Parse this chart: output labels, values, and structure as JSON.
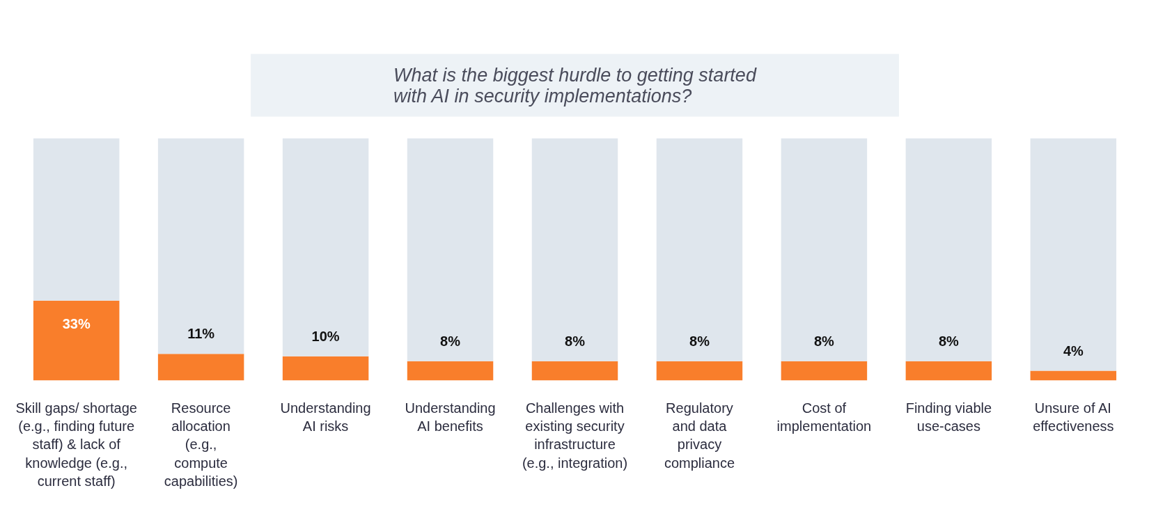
{
  "chart_data": {
    "type": "bar",
    "title": "What is the biggest hurdle to getting started\nwith AI in security implementations?",
    "categories": [
      "Skill gaps/ shortage\n(e.g., finding future\nstaff) & lack of\nknowledge (e.g.,\ncurrent staff)",
      "Resource\nallocation\n(e.g.,\ncompute\ncapabilities)",
      "Understanding\nAI risks",
      "Understanding\nAI benefits",
      "Challenges with\nexisting security\ninfrastructure\n(e.g., integration)",
      "Regulatory\nand data\nprivacy\ncompliance",
      "Cost of\nimplementation",
      "Finding viable\nuse-cases",
      "Unsure of AI\neffectiveness"
    ],
    "series": [
      {
        "color": "#f97e2b",
        "values": [
          33,
          11,
          10,
          8,
          8,
          8,
          8,
          8,
          4
        ],
        "value_labels": [
          "33%",
          "11%",
          "10%",
          "8%",
          "8%",
          "8%",
          "8%",
          "8%",
          "4%"
        ]
      },
      {
        "color": "#dfe6ed",
        "values": [
          67,
          89,
          90,
          92,
          92,
          92,
          92,
          92,
          96
        ]
      }
    ],
    "stacked": true,
    "ylim": [
      0,
      100
    ],
    "tick_labels": "x"
  }
}
